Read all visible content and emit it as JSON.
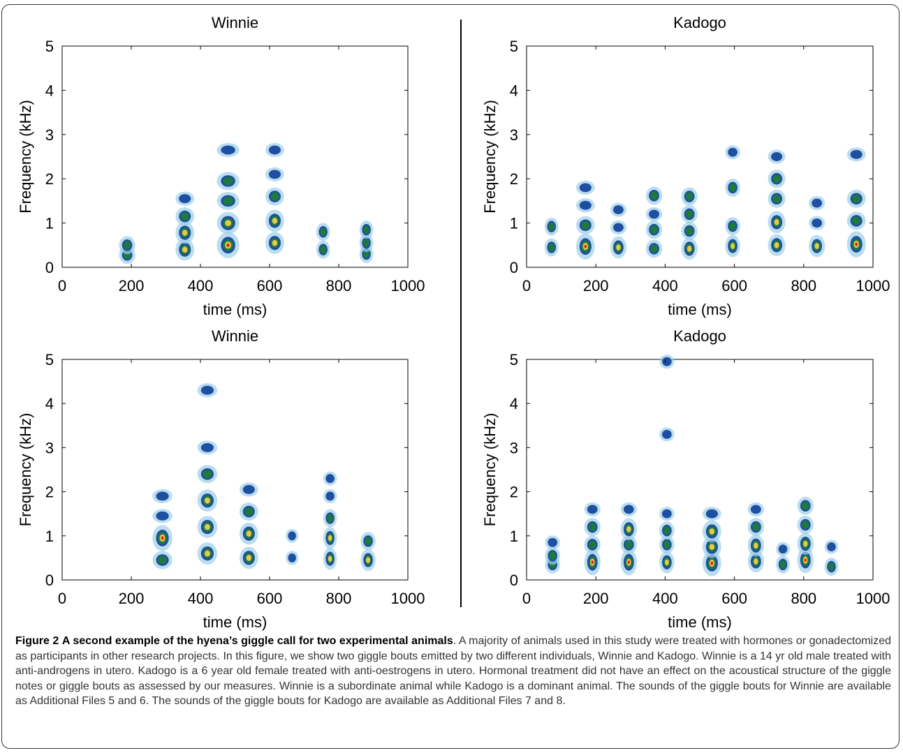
{
  "figure": {
    "caption_label": "Figure 2",
    "caption_title": "A second example of the hyena’s giggle call for two experimental animals",
    "caption_body": ". A majority of animals used in this study were treated with hormones or gonadectomized as participants in other research projects. In this figure, we show two giggle bouts emitted by two different individuals, Winnie and Kadogo. Winnie is a 14 yr old male treated with anti-androgens in utero. Kadogo is a 6 year old female treated with anti-oestrogens in utero. Hormonal treatment did not have an effect on the acoustical structure of the giggle notes or giggle bouts as assessed by our measures. Winnie is a subordinate animal while Kadogo is a dominant animal. The sounds of the giggle bouts for Winnie are available as Additional Files 5 and 6. The sounds of the giggle bouts for Kadogo are available as Additional Files 7 and 8."
  },
  "colors": {
    "low": "#9ccfe8",
    "mid": "#1f4fa0",
    "green": "#1d7a3c",
    "yellow": "#e8c84a",
    "peak": "#e0201a"
  },
  "chart_data": [
    {
      "type": "heatmap",
      "title": "Winnie",
      "xlabel": "time (ms)",
      "ylabel": "Frequency (kHz)",
      "xlim": [
        0,
        1000
      ],
      "ylim": [
        0,
        5
      ],
      "xticks": [
        "0",
        "200",
        "400",
        "600",
        "800",
        "1000"
      ],
      "yticks": [
        "0",
        "1",
        "2",
        "3",
        "4",
        "5"
      ],
      "notes": [
        {
          "t": 188,
          "dt": 18,
          "harmonics": [
            [
              0.28,
              2
            ],
            [
              0.5,
              2
            ]
          ]
        },
        {
          "t": 355,
          "dt": 22,
          "harmonics": [
            [
              0.4,
              3
            ],
            [
              0.78,
              3
            ],
            [
              1.15,
              2
            ],
            [
              1.55,
              1
            ]
          ]
        },
        {
          "t": 480,
          "dt": 28,
          "harmonics": [
            [
              0.5,
              4
            ],
            [
              1.0,
              3
            ],
            [
              1.5,
              2
            ],
            [
              1.95,
              2
            ],
            [
              2.65,
              1
            ]
          ]
        },
        {
          "t": 615,
          "dt": 22,
          "harmonics": [
            [
              0.55,
              3
            ],
            [
              1.05,
              3
            ],
            [
              1.6,
              2
            ],
            [
              2.1,
              1
            ],
            [
              2.65,
              1
            ]
          ]
        },
        {
          "t": 755,
          "dt": 14,
          "harmonics": [
            [
              0.4,
              2
            ],
            [
              0.8,
              2
            ]
          ]
        },
        {
          "t": 880,
          "dt": 14,
          "harmonics": [
            [
              0.3,
              2
            ],
            [
              0.55,
              2
            ],
            [
              0.85,
              2
            ]
          ]
        }
      ]
    },
    {
      "type": "heatmap",
      "title": "Kadogo",
      "xlabel": "time (ms)",
      "ylabel": "Frequency (kHz)",
      "xlim": [
        0,
        1000
      ],
      "ylim": [
        0,
        5
      ],
      "xticks": [
        "0",
        "200",
        "400",
        "600",
        "800",
        "1000"
      ],
      "yticks": [
        "0",
        "1",
        "2",
        "3",
        "4",
        "5"
      ],
      "notes": [
        {
          "t": 72,
          "dt": 14,
          "harmonics": [
            [
              0.45,
              2
            ],
            [
              0.92,
              2
            ]
          ]
        },
        {
          "t": 170,
          "dt": 22,
          "harmonics": [
            [
              0.47,
              4
            ],
            [
              0.95,
              2
            ],
            [
              1.4,
              1
            ],
            [
              1.8,
              1
            ]
          ]
        },
        {
          "t": 265,
          "dt": 18,
          "harmonics": [
            [
              0.45,
              3
            ],
            [
              0.9,
              1
            ],
            [
              1.3,
              1
            ]
          ]
        },
        {
          "t": 368,
          "dt": 18,
          "harmonics": [
            [
              0.42,
              2
            ],
            [
              0.85,
              2
            ],
            [
              1.2,
              1
            ],
            [
              1.62,
              2
            ]
          ]
        },
        {
          "t": 470,
          "dt": 18,
          "harmonics": [
            [
              0.42,
              3
            ],
            [
              0.82,
              2
            ],
            [
              1.2,
              2
            ],
            [
              1.6,
              2
            ]
          ]
        },
        {
          "t": 595,
          "dt": 16,
          "harmonics": [
            [
              0.48,
              3
            ],
            [
              0.93,
              2
            ],
            [
              1.8,
              2
            ],
            [
              2.6,
              1
            ]
          ]
        },
        {
          "t": 722,
          "dt": 20,
          "harmonics": [
            [
              0.5,
              3
            ],
            [
              1.02,
              3
            ],
            [
              1.55,
              2
            ],
            [
              2.0,
              2
            ],
            [
              2.5,
              1
            ]
          ]
        },
        {
          "t": 838,
          "dt": 18,
          "harmonics": [
            [
              0.48,
              3
            ],
            [
              1.0,
              1
            ],
            [
              1.45,
              1
            ]
          ]
        },
        {
          "t": 952,
          "dt": 22,
          "harmonics": [
            [
              0.52,
              4
            ],
            [
              1.05,
              2
            ],
            [
              1.55,
              2
            ],
            [
              2.55,
              1
            ]
          ]
        }
      ]
    },
    {
      "type": "heatmap",
      "title": "Winnie",
      "xlabel": "time (ms)",
      "ylabel": "Frequency (kHz)",
      "xlim": [
        0,
        1000
      ],
      "ylim": [
        0,
        5
      ],
      "xticks": [
        "0",
        "200",
        "400",
        "600",
        "800",
        "1000"
      ],
      "yticks": [
        "0",
        "1",
        "2",
        "3",
        "4",
        "5"
      ],
      "notes": [
        {
          "t": 290,
          "dt": 24,
          "harmonics": [
            [
              0.45,
              2
            ],
            [
              0.95,
              4
            ],
            [
              1.45,
              1
            ],
            [
              1.9,
              1
            ]
          ]
        },
        {
          "t": 420,
          "dt": 24,
          "harmonics": [
            [
              0.6,
              3
            ],
            [
              1.2,
              3
            ],
            [
              1.8,
              3
            ],
            [
              2.4,
              2
            ],
            [
              3.0,
              1
            ],
            [
              4.3,
              1
            ]
          ]
        },
        {
          "t": 540,
          "dt": 22,
          "harmonics": [
            [
              0.5,
              3
            ],
            [
              1.05,
              3
            ],
            [
              1.55,
              2
            ],
            [
              2.05,
              1
            ]
          ]
        },
        {
          "t": 665,
          "dt": 12,
          "harmonics": [
            [
              0.5,
              1
            ],
            [
              1.0,
              1
            ]
          ]
        },
        {
          "t": 775,
          "dt": 14,
          "harmonics": [
            [
              0.48,
              3
            ],
            [
              0.95,
              3
            ],
            [
              1.4,
              2
            ],
            [
              1.9,
              1
            ],
            [
              2.3,
              1
            ]
          ]
        },
        {
          "t": 885,
          "dt": 16,
          "harmonics": [
            [
              0.45,
              3
            ],
            [
              0.88,
              2
            ]
          ]
        }
      ]
    },
    {
      "type": "heatmap",
      "title": "Kadogo",
      "xlabel": "time (ms)",
      "ylabel": "Frequency (kHz)",
      "xlim": [
        0,
        1000
      ],
      "ylim": [
        0,
        5
      ],
      "xticks": [
        "0",
        "200",
        "400",
        "600",
        "800",
        "1000"
      ],
      "yticks": [
        "0",
        "1",
        "2",
        "3",
        "4",
        "5"
      ],
      "notes": [
        {
          "t": 75,
          "dt": 16,
          "harmonics": [
            [
              0.35,
              2
            ],
            [
              0.55,
              2
            ],
            [
              0.85,
              1
            ]
          ]
        },
        {
          "t": 190,
          "dt": 18,
          "harmonics": [
            [
              0.4,
              4
            ],
            [
              0.8,
              2
            ],
            [
              1.2,
              2
            ],
            [
              1.6,
              1
            ]
          ]
        },
        {
          "t": 295,
          "dt": 18,
          "harmonics": [
            [
              0.4,
              4
            ],
            [
              0.8,
              2
            ],
            [
              1.15,
              3
            ],
            [
              1.6,
              1
            ]
          ]
        },
        {
          "t": 405,
          "dt": 16,
          "harmonics": [
            [
              0.4,
              3
            ],
            [
              0.8,
              2
            ],
            [
              1.12,
              2
            ],
            [
              1.5,
              1
            ],
            [
              3.3,
              1
            ],
            [
              4.95,
              1
            ]
          ]
        },
        {
          "t": 535,
          "dt": 22,
          "harmonics": [
            [
              0.38,
              4
            ],
            [
              0.75,
              3
            ],
            [
              1.1,
              3
            ],
            [
              1.5,
              1
            ]
          ]
        },
        {
          "t": 662,
          "dt": 18,
          "harmonics": [
            [
              0.42,
              3
            ],
            [
              0.78,
              3
            ],
            [
              1.2,
              2
            ],
            [
              1.6,
              1
            ]
          ]
        },
        {
          "t": 740,
          "dt": 14,
          "harmonics": [
            [
              0.35,
              2
            ],
            [
              0.7,
              1
            ]
          ]
        },
        {
          "t": 805,
          "dt": 18,
          "harmonics": [
            [
              0.45,
              4
            ],
            [
              0.82,
              3
            ],
            [
              1.25,
              2
            ],
            [
              1.68,
              2
            ]
          ]
        },
        {
          "t": 880,
          "dt": 14,
          "harmonics": [
            [
              0.3,
              2
            ],
            [
              0.75,
              1
            ]
          ]
        }
      ]
    }
  ]
}
